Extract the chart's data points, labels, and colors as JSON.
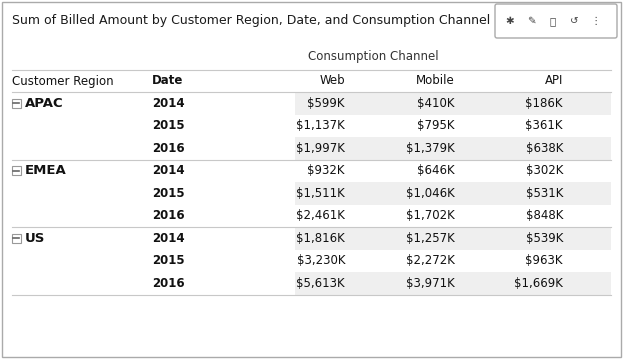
{
  "title": "Sum of Billed Amount by Customer Region, Date, and Consumption Channel",
  "consumption_channel_label": "Consumption Channel",
  "rows": [
    {
      "region": "APAC",
      "date": "2014",
      "web": "$599K",
      "mobile": "$410K",
      "api": "$186K",
      "shaded": true,
      "region_sep": false
    },
    {
      "region": "",
      "date": "2015",
      "web": "$1,137K",
      "mobile": "$795K",
      "api": "$361K",
      "shaded": false,
      "region_sep": false
    },
    {
      "region": "",
      "date": "2016",
      "web": "$1,997K",
      "mobile": "$1,379K",
      "api": "$638K",
      "shaded": true,
      "region_sep": false
    },
    {
      "region": "EMEA",
      "date": "2014",
      "web": "$932K",
      "mobile": "$646K",
      "api": "$302K",
      "shaded": false,
      "region_sep": true
    },
    {
      "region": "",
      "date": "2015",
      "web": "$1,511K",
      "mobile": "$1,046K",
      "api": "$531K",
      "shaded": true,
      "region_sep": false
    },
    {
      "region": "",
      "date": "2016",
      "web": "$2,461K",
      "mobile": "$1,702K",
      "api": "$848K",
      "shaded": false,
      "region_sep": false
    },
    {
      "region": "US",
      "date": "2014",
      "web": "$1,816K",
      "mobile": "$1,257K",
      "api": "$539K",
      "shaded": true,
      "region_sep": true
    },
    {
      "region": "",
      "date": "2015",
      "web": "$3,230K",
      "mobile": "$2,272K",
      "api": "$963K",
      "shaded": false,
      "region_sep": false
    },
    {
      "region": "",
      "date": "2016",
      "web": "$5,613K",
      "mobile": "$3,971K",
      "api": "$1,669K",
      "shaded": true,
      "region_sep": false
    }
  ],
  "bg_color": "#ffffff",
  "shaded_color": "#efefef",
  "border_color": "#c8c8c8",
  "title_fontsize": 9.0,
  "header_fontsize": 8.5,
  "cell_fontsize": 8.5,
  "region_fontsize": 9.5,
  "fig_width": 6.23,
  "fig_height": 3.59,
  "dpi": 100
}
